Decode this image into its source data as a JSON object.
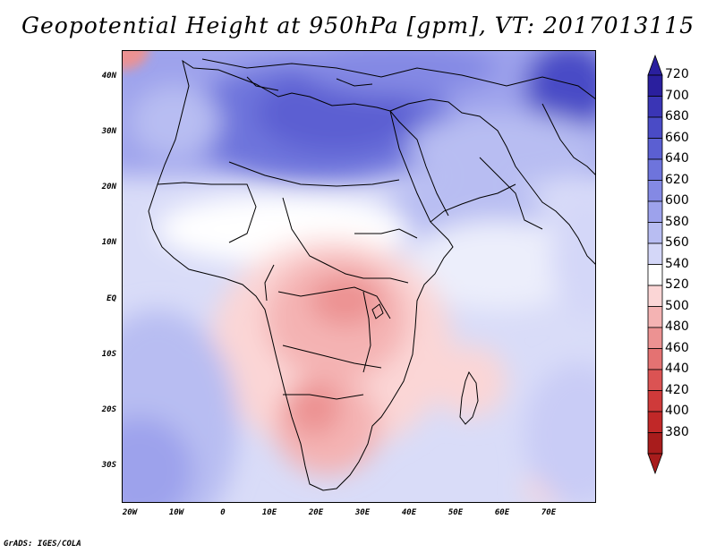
{
  "title": "Geopotential Height at 950hPa [gpm], VT: 2017013115",
  "footer": "GrADS: IGES/COLA",
  "lat_labels": [
    "40N",
    "30N",
    "20N",
    "10N",
    "EQ",
    "10S",
    "20S",
    "30S"
  ],
  "lon_labels": [
    "20W",
    "10W",
    "0",
    "10E",
    "20E",
    "30E",
    "40E",
    "50E",
    "60E",
    "70E"
  ],
  "colorbar": {
    "labels": [
      "720",
      "700",
      "680",
      "660",
      "640",
      "620",
      "600",
      "580",
      "560",
      "540",
      "520",
      "500",
      "480",
      "460",
      "440",
      "420",
      "400",
      "380"
    ],
    "colors": [
      "#2a1f9e",
      "#3a35b5",
      "#4a4bc6",
      "#5b5fd2",
      "#6e74dc",
      "#8489e4",
      "#9da2ec",
      "#b8bdf2",
      "#d4d7f8",
      "#ffffff",
      "#fbd6d6",
      "#f4b3b3",
      "#ec9292",
      "#e47272",
      "#db5353",
      "#cf3a3a",
      "#c12828",
      "#a81c1c"
    ]
  },
  "colors": {
    "frame": "#000000",
    "background": "#ffffff"
  }
}
